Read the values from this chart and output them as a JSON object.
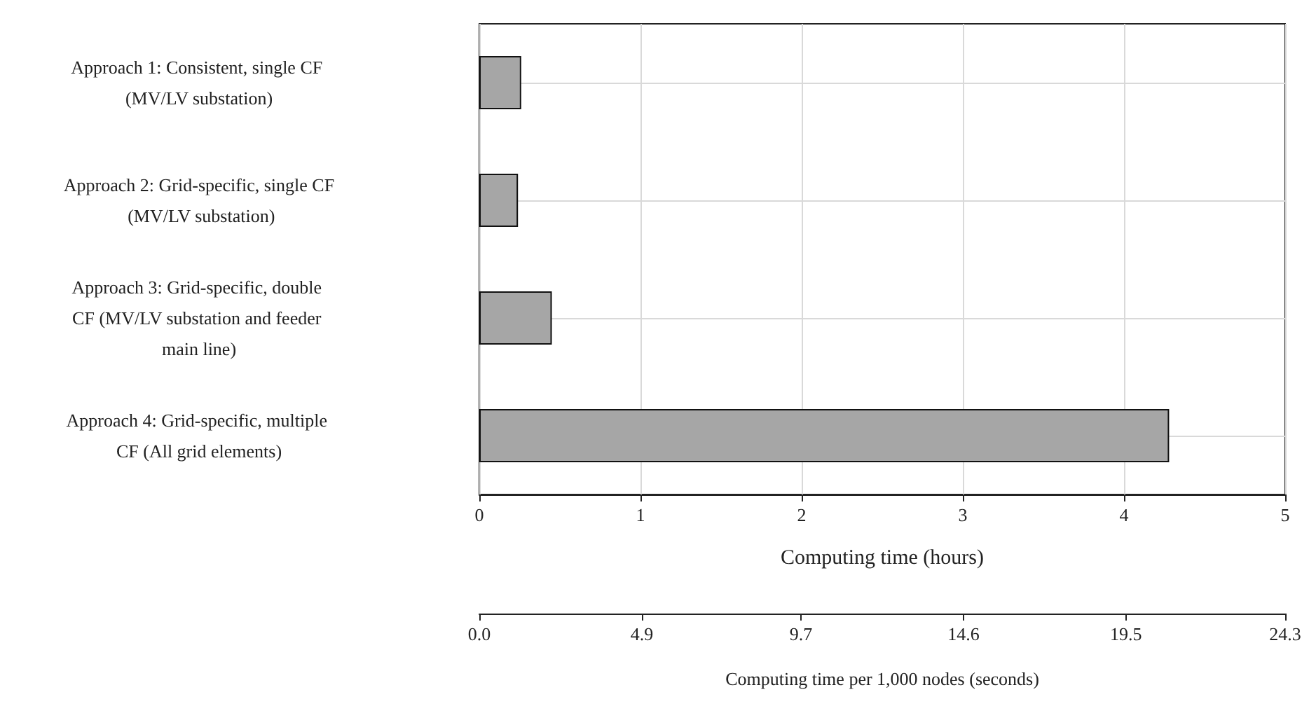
{
  "chart_data": {
    "type": "bar",
    "orientation": "horizontal",
    "categories": [
      "Approach 1: Consistent, single CF (MV/LV substation)",
      "Approach 2: Grid-specific, single CF (MV/LV substation)",
      "Approach 3: Grid-specific, double CF (MV/LV substation and feeder main line)",
      "Approach 4: Grid-specific, multiple CF (All grid elements)"
    ],
    "values": [
      0.26,
      0.24,
      0.45,
      4.28
    ],
    "color": "#a6a6a6",
    "xlabel": "Computing time (hours)",
    "xlim": [
      0,
      5
    ],
    "xticks": [
      0,
      1,
      2,
      3,
      4,
      5
    ],
    "x2label": "Computing time per 1,000 nodes (seconds)",
    "x2lim": [
      0,
      24.3
    ],
    "x2ticks": [
      {
        "value": 0,
        "label": "0.0"
      },
      4.9,
      9.7,
      14.6,
      19.5,
      24.3
    ],
    "grid": true
  }
}
